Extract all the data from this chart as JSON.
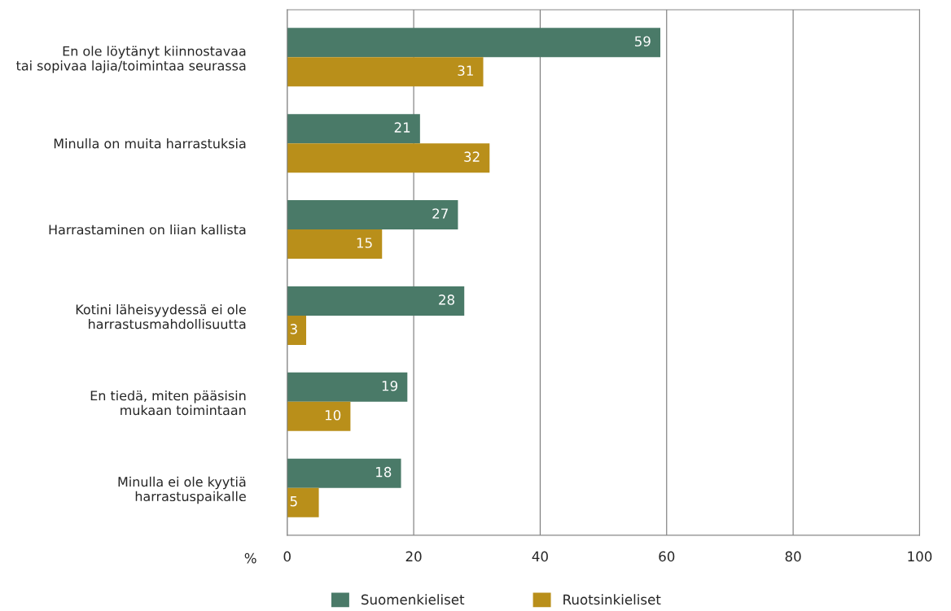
{
  "chart_data": {
    "type": "bar",
    "orientation": "horizontal",
    "xlabel": "%",
    "categories": [
      "En ole löytänyt kiinnostavaa\ntai sopivaa lajia/toimintaa seurassa",
      "Minulla on muita harrastuksia",
      "Harrastaminen on liian kallista",
      "Kotini läheisyydessä ei ole\nharrastusmahdollisuutta",
      "En tiedä, miten pääsisin\nmukaan toimintaan",
      "Minulla ei ole kyytiä\nharrastuspaikalle"
    ],
    "series": [
      {
        "name": "Suomenkieliset",
        "color": "#4a7a68",
        "values": [
          59,
          21,
          27,
          28,
          19,
          18
        ]
      },
      {
        "name": "Ruotsinkieliset",
        "color": "#b98f1a",
        "values": [
          31,
          32,
          15,
          3,
          10,
          5
        ]
      }
    ],
    "xlim": [
      0,
      100
    ],
    "xticks": [
      0,
      20,
      40,
      60,
      80,
      100
    ],
    "grid": "x",
    "data_labels": true,
    "legend": "bottom"
  }
}
